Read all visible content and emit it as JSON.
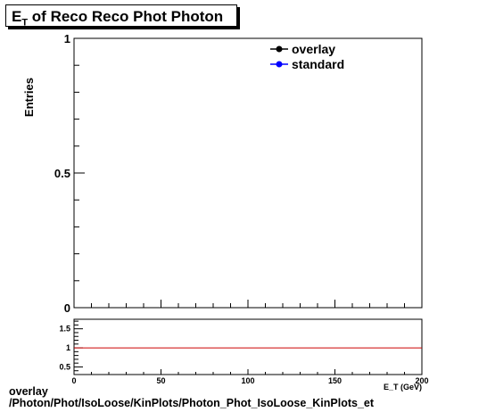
{
  "title": {
    "main": "E",
    "sub": "T",
    "rest": " of Reco Reco Phot Photon"
  },
  "chart_data": [
    {
      "type": "line",
      "ylabel": "Entries",
      "ylim": [
        0,
        1
      ],
      "yticks": [
        {
          "value": 0,
          "label": "0"
        },
        {
          "value": 0.5,
          "label": "0.5"
        },
        {
          "value": 1,
          "label": "1"
        }
      ],
      "xlim": [
        0,
        200
      ],
      "legend_position": "top-right",
      "series": [
        {
          "name": "overlay",
          "color": "#000000",
          "x": [],
          "y": []
        },
        {
          "name": "standard",
          "color": "#0000ff",
          "x": [],
          "y": []
        }
      ]
    },
    {
      "type": "line",
      "xlabel": "E_T (GeV)",
      "xlim": [
        0,
        200
      ],
      "ylim": [
        0.3,
        1.75
      ],
      "xticks": [
        {
          "value": 0,
          "label": "0"
        },
        {
          "value": 50,
          "label": "50"
        },
        {
          "value": 100,
          "label": "100"
        },
        {
          "value": 150,
          "label": "150"
        },
        {
          "value": 200,
          "label": "200"
        }
      ],
      "yticks": [
        {
          "value": 0.5,
          "label": "0.5"
        },
        {
          "value": 1,
          "label": "1"
        },
        {
          "value": 1.5,
          "label": "1.5"
        }
      ],
      "reference_line": {
        "y": 1,
        "color": "#cc0000"
      }
    }
  ],
  "footer": {
    "line1": "overlay",
    "line2": "/Photon/Phot/IsoLoose/KinPlots/Photon_Phot_IsoLoose_KinPlots_et"
  }
}
